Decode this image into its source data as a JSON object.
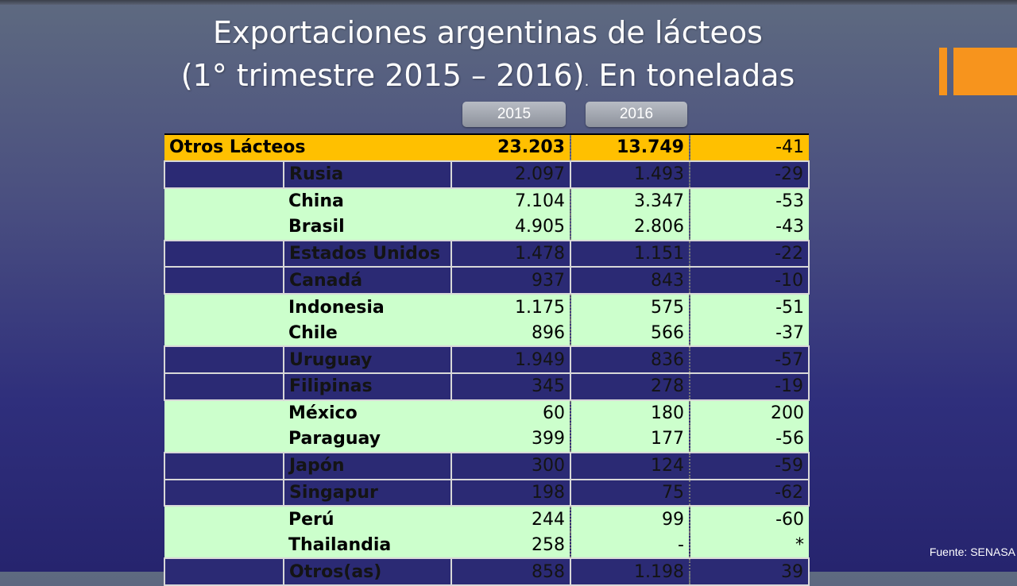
{
  "title": {
    "line1": "Exportaciones argentinas de lácteos",
    "line2a": "(1° trimestre 2015 – 2016)",
    "line2b": ".",
    "line2c": " En toneladas"
  },
  "years": [
    "2015",
    "2016"
  ],
  "table": {
    "header": {
      "label": "Otros Lácteos",
      "v2015": "23.203",
      "v2016": "13.749",
      "var": "-41"
    },
    "rows": [
      {
        "country": "Rusia",
        "v2015": "2.097",
        "v2016": "1.493",
        "var": "-29",
        "style": "dark"
      },
      {
        "country": "China",
        "v2015": "7.104",
        "v2016": "3.347",
        "var": "-53",
        "style": "green"
      },
      {
        "country": "Brasil",
        "v2015": "4.905",
        "v2016": "2.806",
        "var": "-43",
        "style": "green"
      },
      {
        "country": "Estados Unidos",
        "v2015": "1.478",
        "v2016": "1.151",
        "var": "-22",
        "style": "dark"
      },
      {
        "country": "Canadá",
        "v2015": "937",
        "v2016": "843",
        "var": "-10",
        "style": "dark"
      },
      {
        "country": "Indonesia",
        "v2015": "1.175",
        "v2016": "575",
        "var": "-51",
        "style": "green"
      },
      {
        "country": "Chile",
        "v2015": "896",
        "v2016": "566",
        "var": "-37",
        "style": "green"
      },
      {
        "country": "Uruguay",
        "v2015": "1.949",
        "v2016": "836",
        "var": "-57",
        "style": "dark"
      },
      {
        "country": "Filipinas",
        "v2015": "345",
        "v2016": "278",
        "var": "-19",
        "style": "dark"
      },
      {
        "country": "México",
        "v2015": "60",
        "v2016": "180",
        "var": "200",
        "style": "green"
      },
      {
        "country": "Paraguay",
        "v2015": "399",
        "v2016": "177",
        "var": "-56",
        "style": "green"
      },
      {
        "country": "Japón",
        "v2015": "300",
        "v2016": "124",
        "var": "-59",
        "style": "dark"
      },
      {
        "country": "Singapur",
        "v2015": "198",
        "v2016": "75",
        "var": "-62",
        "style": "dark"
      },
      {
        "country": "Perú",
        "v2015": "244",
        "v2016": "99",
        "var": "-60",
        "style": "green"
      },
      {
        "country": "Thailandia",
        "v2015": "258",
        "v2016": "-",
        "var": "*",
        "style": "green"
      },
      {
        "country": "Otros(as)",
        "v2015": "858",
        "v2016": "1.198",
        "var": "39",
        "style": "dark"
      }
    ]
  },
  "source": "Fuente: SENASA",
  "colors": {
    "accent_orange": "#f7941d",
    "header_yellow": "#ffc000",
    "row_green": "#ccffcc",
    "row_dark": "#2b2a74"
  }
}
